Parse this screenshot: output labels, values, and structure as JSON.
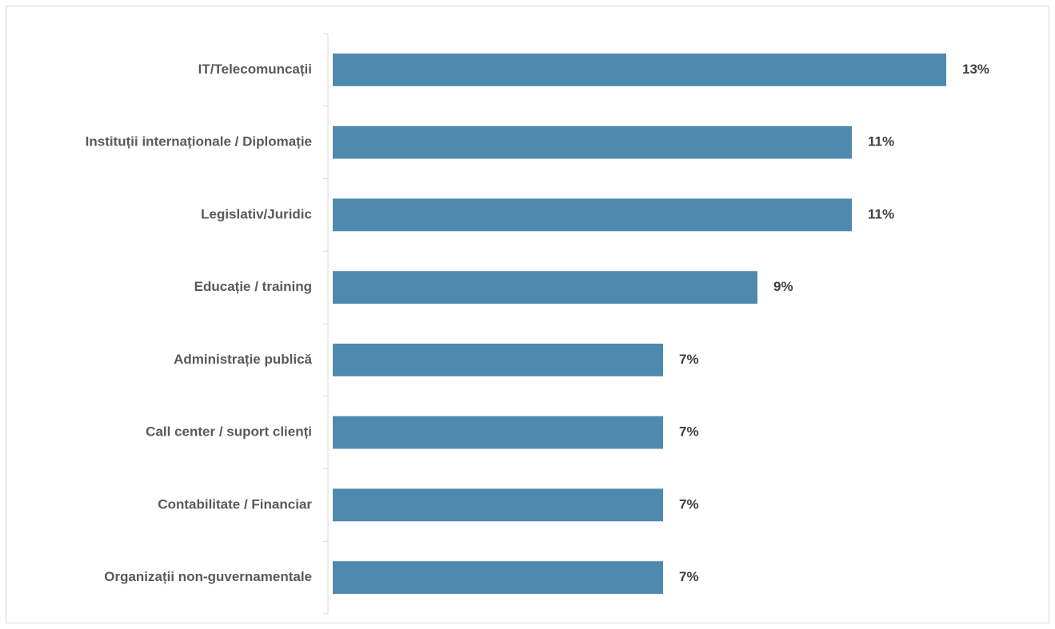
{
  "chart_data": {
    "type": "bar",
    "orientation": "horizontal",
    "title": "",
    "xlabel": "",
    "ylabel": "",
    "categories": [
      "IT/Telecomuncații",
      "Instituții internaționale / Diplomație",
      "Legislativ/Juridic",
      "Educație / training",
      "Administrație publică",
      "Call center / suport clienți",
      "Contabilitate / Financiar",
      "Organizații non-guvernamentale"
    ],
    "values": [
      13,
      11,
      11,
      9,
      7,
      7,
      7,
      7
    ],
    "value_labels": [
      "13%",
      "11%",
      "11%",
      "9%",
      "7%",
      "7%",
      "7%",
      "7%"
    ],
    "unit": "%",
    "xlim": [
      0,
      14
    ],
    "grid": false,
    "legend": "none",
    "bar_color": "#4e8aae",
    "axis_color": "#d9d9d9",
    "label_color": "#595959",
    "value_label_color": "#404040"
  }
}
